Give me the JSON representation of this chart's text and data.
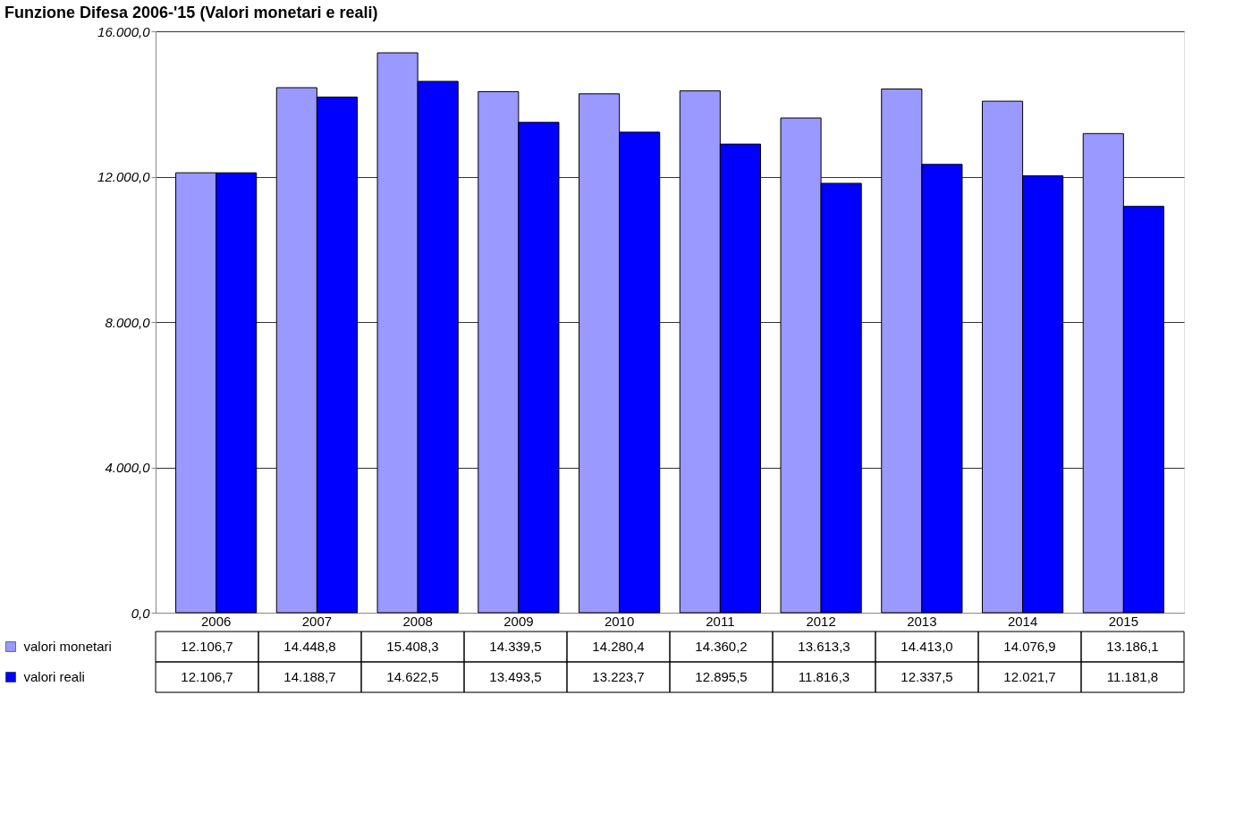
{
  "chart_data": {
    "type": "bar",
    "title": "Funzione Difesa 2006-'15 (Valori monetari e reali)",
    "categories": [
      "2006",
      "2007",
      "2008",
      "2009",
      "2010",
      "2011",
      "2012",
      "2013",
      "2014",
      "2015"
    ],
    "series": [
      {
        "name": "valori monetari",
        "color": "#9999ff",
        "values": [
          12106.7,
          14448.8,
          15408.3,
          14339.5,
          14280.4,
          14360.2,
          13613.3,
          14413.0,
          14076.9,
          13186.1
        ],
        "value_labels": [
          "12.106,7",
          "14.448,8",
          "15.408,3",
          "14.339,5",
          "14.280,4",
          "14.360,2",
          "13.613,3",
          "14.413,0",
          "14.076,9",
          "13.186,1"
        ]
      },
      {
        "name": "valori reali",
        "color": "#0000ff",
        "values": [
          12106.7,
          14188.7,
          14622.5,
          13493.5,
          13223.7,
          12895.5,
          11816.3,
          12337.5,
          12021.7,
          11181.8
        ],
        "value_labels": [
          "12.106,7",
          "14.188,7",
          "14.622,5",
          "13.493,5",
          "13.223,7",
          "12.895,5",
          "11.816,3",
          "12.337,5",
          "12.021,7",
          "11.181,8"
        ]
      }
    ],
    "ylim": [
      0,
      16000
    ],
    "yticks": [
      {
        "value": 0,
        "label": "0,0"
      },
      {
        "value": 4000,
        "label": "4.000,0"
      },
      {
        "value": 8000,
        "label": "8.000,0"
      },
      {
        "value": 12000,
        "label": "12.000,0"
      },
      {
        "value": 16000,
        "label": "16.000,0"
      }
    ],
    "grid": "y",
    "legend": "bottom left"
  }
}
